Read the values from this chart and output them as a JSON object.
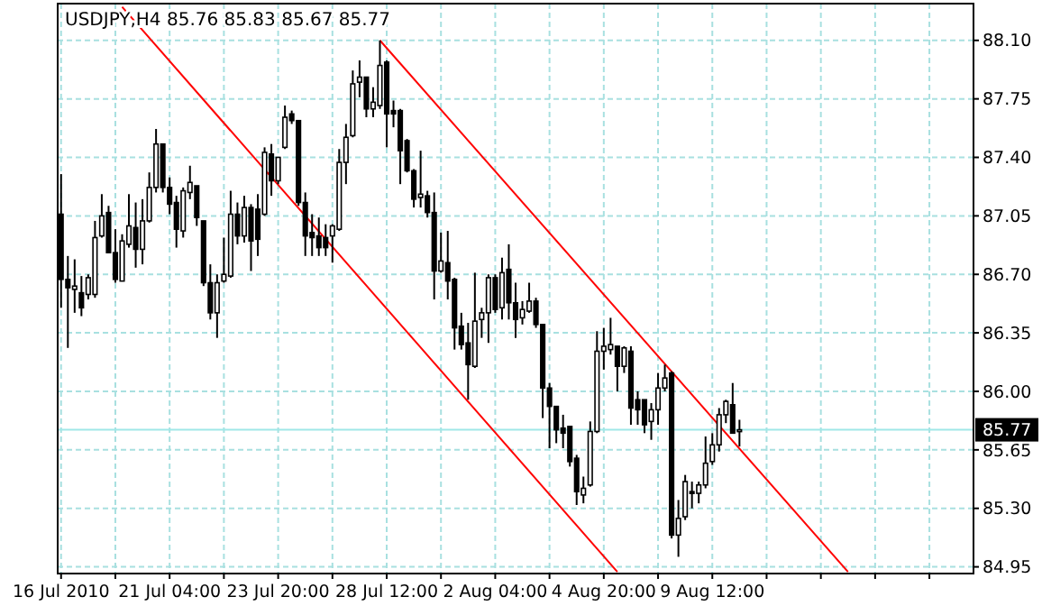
{
  "chart_data": {
    "type": "candlestick",
    "title": "USDJPY,H4  85.76 85.83 85.67 85.77",
    "color": "#000000",
    "grid": true,
    "categories": [
      "16 Jul 2010",
      null,
      null,
      null,
      null,
      null,
      null,
      null,
      null,
      null,
      null,
      null,
      null,
      null,
      null,
      null,
      "21 Jul 04:00",
      null,
      null,
      null,
      null,
      null,
      null,
      null,
      null,
      null,
      null,
      null,
      null,
      null,
      null,
      null,
      "23 Jul 20:00",
      null,
      null,
      null,
      null,
      null,
      null,
      null,
      null,
      null,
      null,
      null,
      null,
      null,
      null,
      null,
      "28 Jul 12:00",
      null,
      null,
      null,
      null,
      null,
      null,
      null,
      null,
      null,
      null,
      null,
      null,
      null,
      null,
      null,
      "2 Aug 04:00",
      null,
      null,
      null,
      null,
      null,
      null,
      null,
      null,
      null,
      null,
      null,
      null,
      null,
      null,
      null,
      "4 Aug 20:00",
      null,
      null,
      null,
      null,
      null,
      null,
      null,
      null,
      null,
      null,
      null,
      null,
      null,
      null,
      null,
      "9 Aug 12:00",
      null,
      null,
      null,
      null,
      null,
      null,
      null,
      null,
      null,
      null,
      null,
      null,
      null,
      null,
      null,
      null,
      null,
      null,
      null,
      null,
      null,
      null,
      null,
      null,
      null,
      null,
      null,
      null,
      null,
      null,
      null,
      null,
      null,
      null,
      null,
      null,
      null,
      null
    ],
    "ohlc": [
      [
        87.06,
        87.3,
        86.5,
        86.67
      ],
      [
        86.67,
        86.81,
        86.26,
        86.62
      ],
      [
        86.61,
        86.79,
        86.47,
        86.63
      ],
      [
        86.59,
        86.69,
        86.45,
        86.5
      ],
      [
        86.58,
        86.7,
        86.55,
        86.68
      ],
      [
        86.58,
        87.02,
        86.56,
        86.92
      ],
      [
        86.93,
        87.18,
        86.92,
        87.05
      ],
      [
        87.07,
        87.11,
        86.83,
        86.83
      ],
      [
        86.83,
        86.97,
        86.65,
        86.67
      ],
      [
        86.66,
        86.94,
        86.66,
        86.9
      ],
      [
        86.88,
        87.18,
        86.86,
        86.99
      ],
      [
        86.98,
        87.13,
        86.74,
        86.85
      ],
      [
        86.85,
        87.15,
        86.76,
        87.02
      ],
      [
        87.02,
        87.31,
        87.01,
        87.22
      ],
      [
        87.22,
        87.57,
        87.19,
        87.48
      ],
      [
        87.48,
        87.48,
        87.19,
        87.22
      ],
      [
        87.22,
        87.28,
        87.06,
        87.12
      ],
      [
        87.13,
        87.17,
        86.86,
        86.97
      ],
      [
        86.96,
        87.22,
        86.92,
        87.2
      ],
      [
        87.19,
        87.35,
        87.15,
        87.25
      ],
      [
        87.23,
        87.23,
        86.99,
        87.04
      ],
      [
        87.02,
        87.02,
        86.63,
        86.65
      ],
      [
        86.65,
        86.76,
        86.43,
        86.47
      ],
      [
        86.47,
        86.7,
        86.32,
        86.65
      ],
      [
        86.66,
        86.92,
        86.65,
        86.7
      ],
      [
        86.69,
        87.2,
        86.68,
        87.06
      ],
      [
        87.06,
        87.13,
        86.88,
        86.93
      ],
      [
        86.93,
        87.17,
        86.89,
        87.1
      ],
      [
        87.1,
        87.12,
        86.72,
        86.9
      ],
      [
        87.09,
        87.18,
        86.81,
        86.91
      ],
      [
        87.06,
        87.46,
        87.05,
        87.43
      ],
      [
        87.42,
        87.48,
        87.17,
        87.26
      ],
      [
        87.26,
        87.4,
        87.24,
        87.4
      ],
      [
        87.46,
        87.71,
        87.45,
        87.64
      ],
      [
        87.66,
        87.68,
        87.6,
        87.62
      ],
      [
        87.62,
        87.62,
        87.11,
        87.13
      ],
      [
        87.13,
        87.19,
        86.81,
        86.93
      ],
      [
        86.95,
        87.06,
        86.81,
        86.92
      ],
      [
        86.93,
        87.04,
        86.81,
        86.86
      ],
      [
        86.92,
        87.0,
        86.81,
        86.86
      ],
      [
        86.93,
        87.0,
        86.77,
        86.99
      ],
      [
        86.97,
        87.45,
        86.96,
        87.37
      ],
      [
        87.37,
        87.6,
        87.24,
        87.52
      ],
      [
        87.53,
        87.92,
        87.52,
        87.84
      ],
      [
        87.85,
        87.98,
        87.76,
        87.88
      ],
      [
        87.88,
        87.88,
        87.64,
        87.69
      ],
      [
        87.69,
        87.82,
        87.64,
        87.73
      ],
      [
        87.71,
        88.1,
        87.69,
        87.95
      ],
      [
        87.97,
        87.98,
        87.46,
        87.66
      ],
      [
        87.68,
        87.74,
        87.58,
        87.66
      ],
      [
        87.68,
        87.69,
        87.24,
        87.44
      ],
      [
        87.5,
        87.51,
        87.31,
        87.32
      ],
      [
        87.32,
        87.33,
        87.1,
        87.15
      ],
      [
        87.16,
        87.44,
        87.1,
        87.18
      ],
      [
        87.17,
        87.2,
        87.04,
        87.07
      ],
      [
        87.07,
        87.19,
        86.55,
        86.72
      ],
      [
        86.72,
        86.95,
        86.71,
        86.78
      ],
      [
        86.77,
        86.96,
        86.55,
        86.66
      ],
      [
        86.67,
        86.68,
        86.25,
        86.38
      ],
      [
        86.39,
        86.47,
        86.25,
        86.28
      ],
      [
        86.29,
        86.41,
        85.95,
        86.16
      ],
      [
        86.15,
        86.71,
        86.14,
        86.42
      ],
      [
        86.43,
        86.5,
        86.32,
        86.47
      ],
      [
        86.47,
        86.7,
        86.29,
        86.68
      ],
      [
        86.68,
        86.7,
        86.47,
        86.49
      ],
      [
        86.5,
        86.8,
        86.43,
        86.71
      ],
      [
        86.73,
        86.88,
        86.43,
        86.53
      ],
      [
        86.53,
        86.65,
        86.32,
        86.43
      ],
      [
        86.44,
        86.54,
        86.4,
        86.49
      ],
      [
        86.48,
        86.65,
        86.47,
        86.54
      ],
      [
        86.54,
        86.56,
        86.38,
        86.4
      ],
      [
        86.4,
        86.4,
        85.84,
        86.02
      ],
      [
        86.02,
        86.05,
        85.66,
        85.91
      ],
      [
        85.91,
        85.91,
        85.69,
        85.77
      ],
      [
        85.78,
        85.86,
        85.66,
        85.75
      ],
      [
        85.79,
        85.79,
        85.55,
        85.58
      ],
      [
        85.6,
        85.62,
        85.32,
        85.4
      ],
      [
        85.38,
        85.49,
        85.33,
        85.42
      ],
      [
        85.44,
        85.82,
        85.43,
        85.76
      ],
      [
        85.76,
        86.36,
        85.75,
        86.24
      ],
      [
        86.24,
        86.38,
        86.13,
        86.27
      ],
      [
        86.25,
        86.44,
        86.22,
        86.28
      ],
      [
        86.27,
        86.27,
        86.0,
        86.15
      ],
      [
        86.15,
        86.27,
        86.11,
        86.26
      ],
      [
        86.24,
        86.27,
        85.8,
        85.9
      ],
      [
        85.95,
        86.0,
        85.8,
        85.89
      ],
      [
        85.95,
        85.95,
        85.75,
        85.8
      ],
      [
        85.82,
        85.93,
        85.71,
        85.89
      ],
      [
        85.89,
        86.11,
        85.8,
        86.02
      ],
      [
        86.02,
        86.16,
        86.0,
        86.08
      ],
      [
        86.11,
        86.12,
        85.12,
        85.14
      ],
      [
        85.14,
        85.35,
        85.01,
        85.24
      ],
      [
        85.25,
        85.5,
        85.23,
        85.46
      ],
      [
        85.4,
        85.46,
        85.3,
        85.39
      ],
      [
        85.39,
        85.46,
        85.33,
        85.44
      ],
      [
        85.44,
        85.73,
        85.42,
        85.57
      ],
      [
        85.58,
        85.75,
        85.56,
        85.68
      ],
      [
        85.68,
        85.9,
        85.64,
        85.86
      ],
      [
        85.86,
        85.95,
        85.81,
        85.94
      ],
      [
        85.92,
        86.05,
        85.75,
        85.75
      ],
      [
        85.76,
        85.83,
        85.67,
        85.77
      ],
      null,
      null,
      null,
      null,
      null,
      null,
      null,
      null,
      null,
      null,
      null,
      null,
      null,
      null,
      null,
      null,
      null,
      null,
      null,
      null,
      null,
      null,
      null,
      null,
      null,
      null,
      null,
      null,
      null,
      null,
      null,
      null,
      null,
      null
    ],
    "series": [
      {
        "type": "line",
        "color": "#ff0000",
        "values": [
          null,
          null,
          null,
          null,
          null,
          null,
          null,
          null,
          null,
          null,
          null,
          null,
          null,
          null,
          null,
          null,
          null,
          null,
          null,
          null,
          null,
          null,
          null,
          null,
          null,
          null,
          null,
          null,
          null,
          null,
          null,
          null,
          null,
          null,
          null,
          null,
          null,
          null,
          null,
          null,
          null,
          null,
          null,
          null,
          null,
          null,
          null,
          88.1,
          null,
          null,
          null,
          null,
          null,
          null,
          null,
          null,
          null,
          null,
          null,
          null,
          null,
          null,
          null,
          null,
          null,
          null,
          null,
          null,
          null,
          null,
          null,
          null,
          null,
          null,
          null,
          null,
          null,
          null,
          null,
          null,
          null,
          null,
          null,
          null,
          null,
          null,
          null,
          null,
          null,
          null,
          null,
          null,
          null,
          null,
          null,
          null,
          null,
          null,
          null,
          null,
          null,
          null,
          null,
          null,
          null,
          null,
          null,
          null,
          null,
          null,
          null,
          null,
          null,
          null,
          null,
          null,
          84.92,
          null,
          null,
          null,
          null,
          null,
          null,
          null,
          null,
          null,
          null,
          null,
          null,
          null,
          null,
          null,
          null,
          null,
          null
        ]
      },
      {
        "type": "line",
        "color": "#ff0000",
        "values": [
          null,
          null,
          null,
          null,
          null,
          null,
          null,
          null,
          null,
          88.3,
          null,
          null,
          null,
          null,
          null,
          null,
          null,
          null,
          null,
          null,
          null,
          null,
          null,
          null,
          null,
          null,
          null,
          null,
          null,
          null,
          null,
          null,
          null,
          null,
          null,
          null,
          null,
          null,
          null,
          null,
          null,
          null,
          null,
          null,
          null,
          null,
          null,
          null,
          null,
          null,
          null,
          null,
          null,
          null,
          null,
          null,
          null,
          null,
          null,
          null,
          null,
          null,
          null,
          null,
          null,
          null,
          null,
          null,
          null,
          null,
          null,
          null,
          null,
          null,
          null,
          null,
          null,
          null,
          null,
          null,
          null,
          null,
          84.92,
          null,
          null,
          null,
          null,
          null,
          null,
          null,
          null,
          null,
          null,
          null,
          null,
          null,
          null,
          null,
          null,
          null,
          null,
          null,
          null,
          null,
          null,
          null,
          null,
          null,
          null,
          null,
          null,
          null,
          null,
          null,
          null,
          null,
          null,
          null,
          null,
          null,
          null,
          null,
          null,
          null,
          null,
          null,
          null,
          null,
          null,
          null,
          null,
          null,
          null,
          null,
          null
        ]
      }
    ],
    "ylim": [
      84.91,
      88.32
    ],
    "yticks": [
      {
        "value": 88.1,
        "label": "88.10"
      },
      {
        "value": 87.75,
        "label": "87.75"
      },
      {
        "value": 87.4,
        "label": "87.40"
      },
      {
        "value": 87.05,
        "label": "87.05"
      },
      {
        "value": 86.7,
        "label": "86.70"
      },
      {
        "value": 86.35,
        "label": "86.35"
      },
      {
        "value": 86.0,
        "label": "86.00"
      },
      {
        "value": 85.65,
        "label": "85.65"
      },
      {
        "value": 85.3,
        "label": "85.30"
      },
      {
        "value": 84.95,
        "label": "84.95"
      }
    ],
    "ref_lines": [
      {
        "axis": "y",
        "value": 85.77,
        "label": "85.77",
        "color": "#a0e8e8"
      }
    ]
  }
}
